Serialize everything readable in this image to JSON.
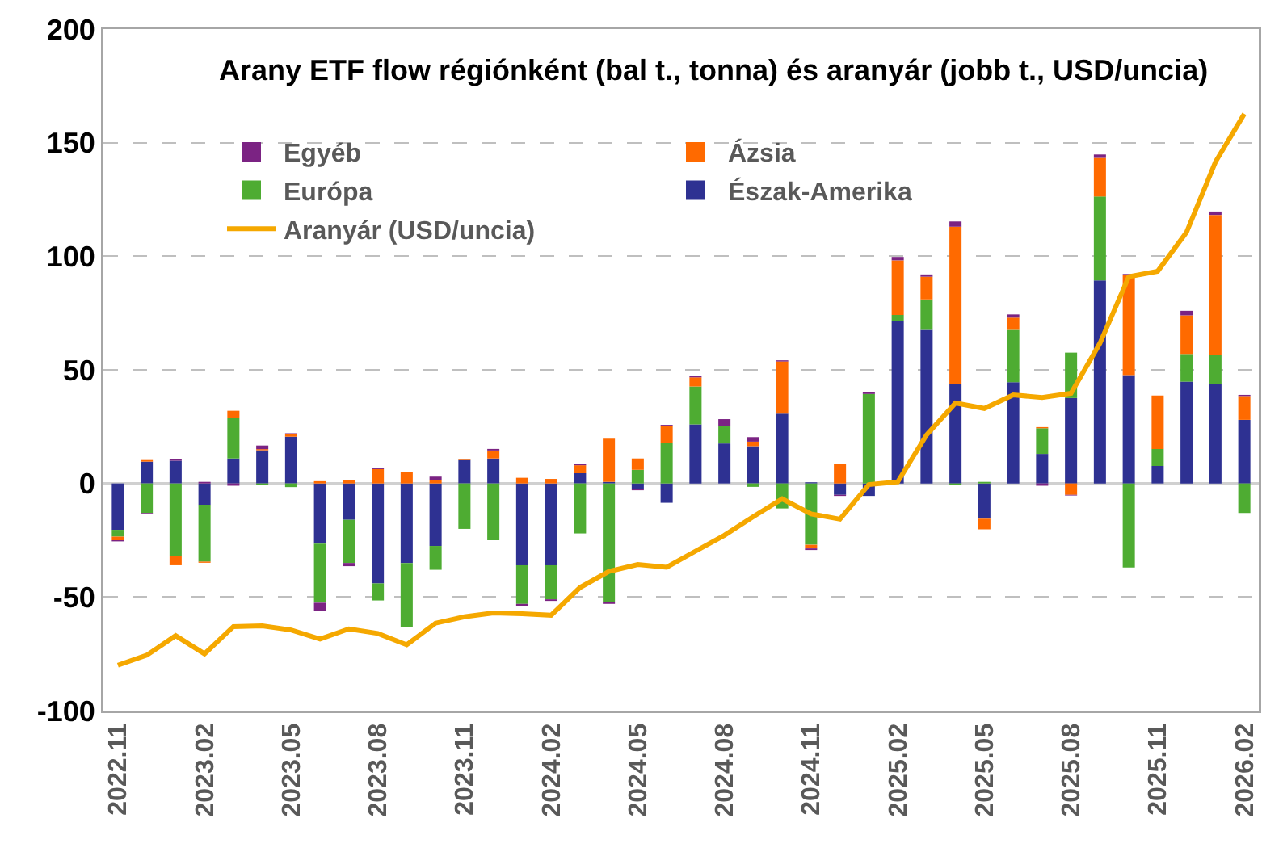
{
  "chart_data": {
    "type": "bar",
    "title": "Arany ETF flow régiónként (bal t., tonna) és aranyár (jobb t., USD/uncia)",
    "stacked": true,
    "categories": [
      "2022.11",
      null,
      null,
      "2023.02",
      null,
      null,
      "2023.05",
      null,
      null,
      "2023.08",
      null,
      null,
      "2023.11",
      null,
      null,
      "2024.02",
      null,
      null,
      "2024.05",
      null,
      null,
      "2024.08",
      null,
      null,
      "2024.11",
      null,
      null,
      "2025.02",
      null,
      null,
      "2025.05",
      null,
      null,
      "2025.08",
      null,
      null,
      "2025.11",
      null,
      null,
      "2026.02"
    ],
    "series": [
      {
        "name": "Észak-Amerika",
        "color": "#2e3192",
        "values": [
          -20.4,
          9.6,
          10,
          -9.4,
          11,
          14.6,
          20.6,
          -26.5,
          -16,
          -44,
          -35,
          -27.5,
          10.3,
          11,
          -36,
          -36,
          4.5,
          0.7,
          -2.5,
          -8.5,
          26,
          17.6,
          16.4,
          30.7,
          0.5,
          -5,
          -5.5,
          71.6,
          67.6,
          44,
          -15.5,
          44.6,
          13,
          37.6,
          89.4,
          47.7,
          7.7,
          44.8,
          43.7,
          28
        ]
      },
      {
        "name": "Európa",
        "color": "#4eac32",
        "values": [
          -3,
          -13,
          -32,
          -25,
          18,
          -0.5,
          -1.6,
          -26,
          -19,
          -7.5,
          -28,
          -10.5,
          -20,
          -25,
          -17,
          -15,
          -22,
          -52,
          6,
          17.8,
          16.7,
          7.7,
          -1.5,
          -11,
          -27,
          null,
          39.4,
          2.6,
          13.4,
          -0.5,
          0.7,
          23,
          11.3,
          20,
          36.9,
          -37,
          7.5,
          12.2,
          13,
          -13
        ]
      },
      {
        "name": "Ázsia",
        "color": "#ff6a00",
        "values": [
          -1.6,
          0.7,
          -4,
          -0.5,
          3,
          0.5,
          1,
          1,
          1.6,
          6.3,
          5,
          1.5,
          0.5,
          3.5,
          2.5,
          2,
          3.5,
          19,
          5,
          7.5,
          4,
          null,
          2,
          23,
          -1.6,
          8.5,
          null,
          24,
          10,
          69,
          -4.7,
          5.4,
          0.5,
          -5,
          17,
          44,
          23.5,
          17,
          61.5,
          10.5
        ]
      },
      {
        "name": "Egyéb",
        "color": "#7b2383",
        "values": [
          -0.5,
          -0.5,
          0.7,
          0.7,
          -1,
          1.6,
          0.5,
          -3.5,
          -1.4,
          0.5,
          null,
          1.5,
          null,
          0.7,
          -1,
          -0.7,
          0.5,
          -1,
          -0.5,
          0.5,
          0.7,
          3,
          2,
          0.5,
          -0.7,
          -0.5,
          0.7,
          1.5,
          1,
          2.3,
          null,
          1.4,
          -1,
          -0.3,
          1.5,
          0.5,
          null,
          2,
          1.5,
          0.5
        ]
      },
      {
        "name": "Aranyár (USD/uncia)",
        "type": "line",
        "color": "#f5a800",
        "values": [
          -80,
          -75.6,
          -67,
          -75,
          -63,
          -62.7,
          -64.5,
          -68.5,
          -64,
          -66,
          -71,
          -61.5,
          -58.7,
          -57,
          -57.3,
          -58,
          -45.8,
          -38.7,
          -35.7,
          -36.9,
          -29.8,
          -22.8,
          -14.6,
          -6.8,
          -13.4,
          -15.7,
          -0.5,
          0.7,
          21.4,
          35.4,
          33,
          39,
          37.8,
          39.7,
          61.7,
          91,
          93.4,
          110.6,
          141.5,
          162.7
        ]
      }
    ],
    "ylim": [
      -100,
      200
    ],
    "yticks": [
      -100,
      -50,
      0,
      50,
      100,
      150,
      200
    ],
    "grid": "y",
    "legend": "top left",
    "marker": "none",
    "line_style": "solid"
  }
}
